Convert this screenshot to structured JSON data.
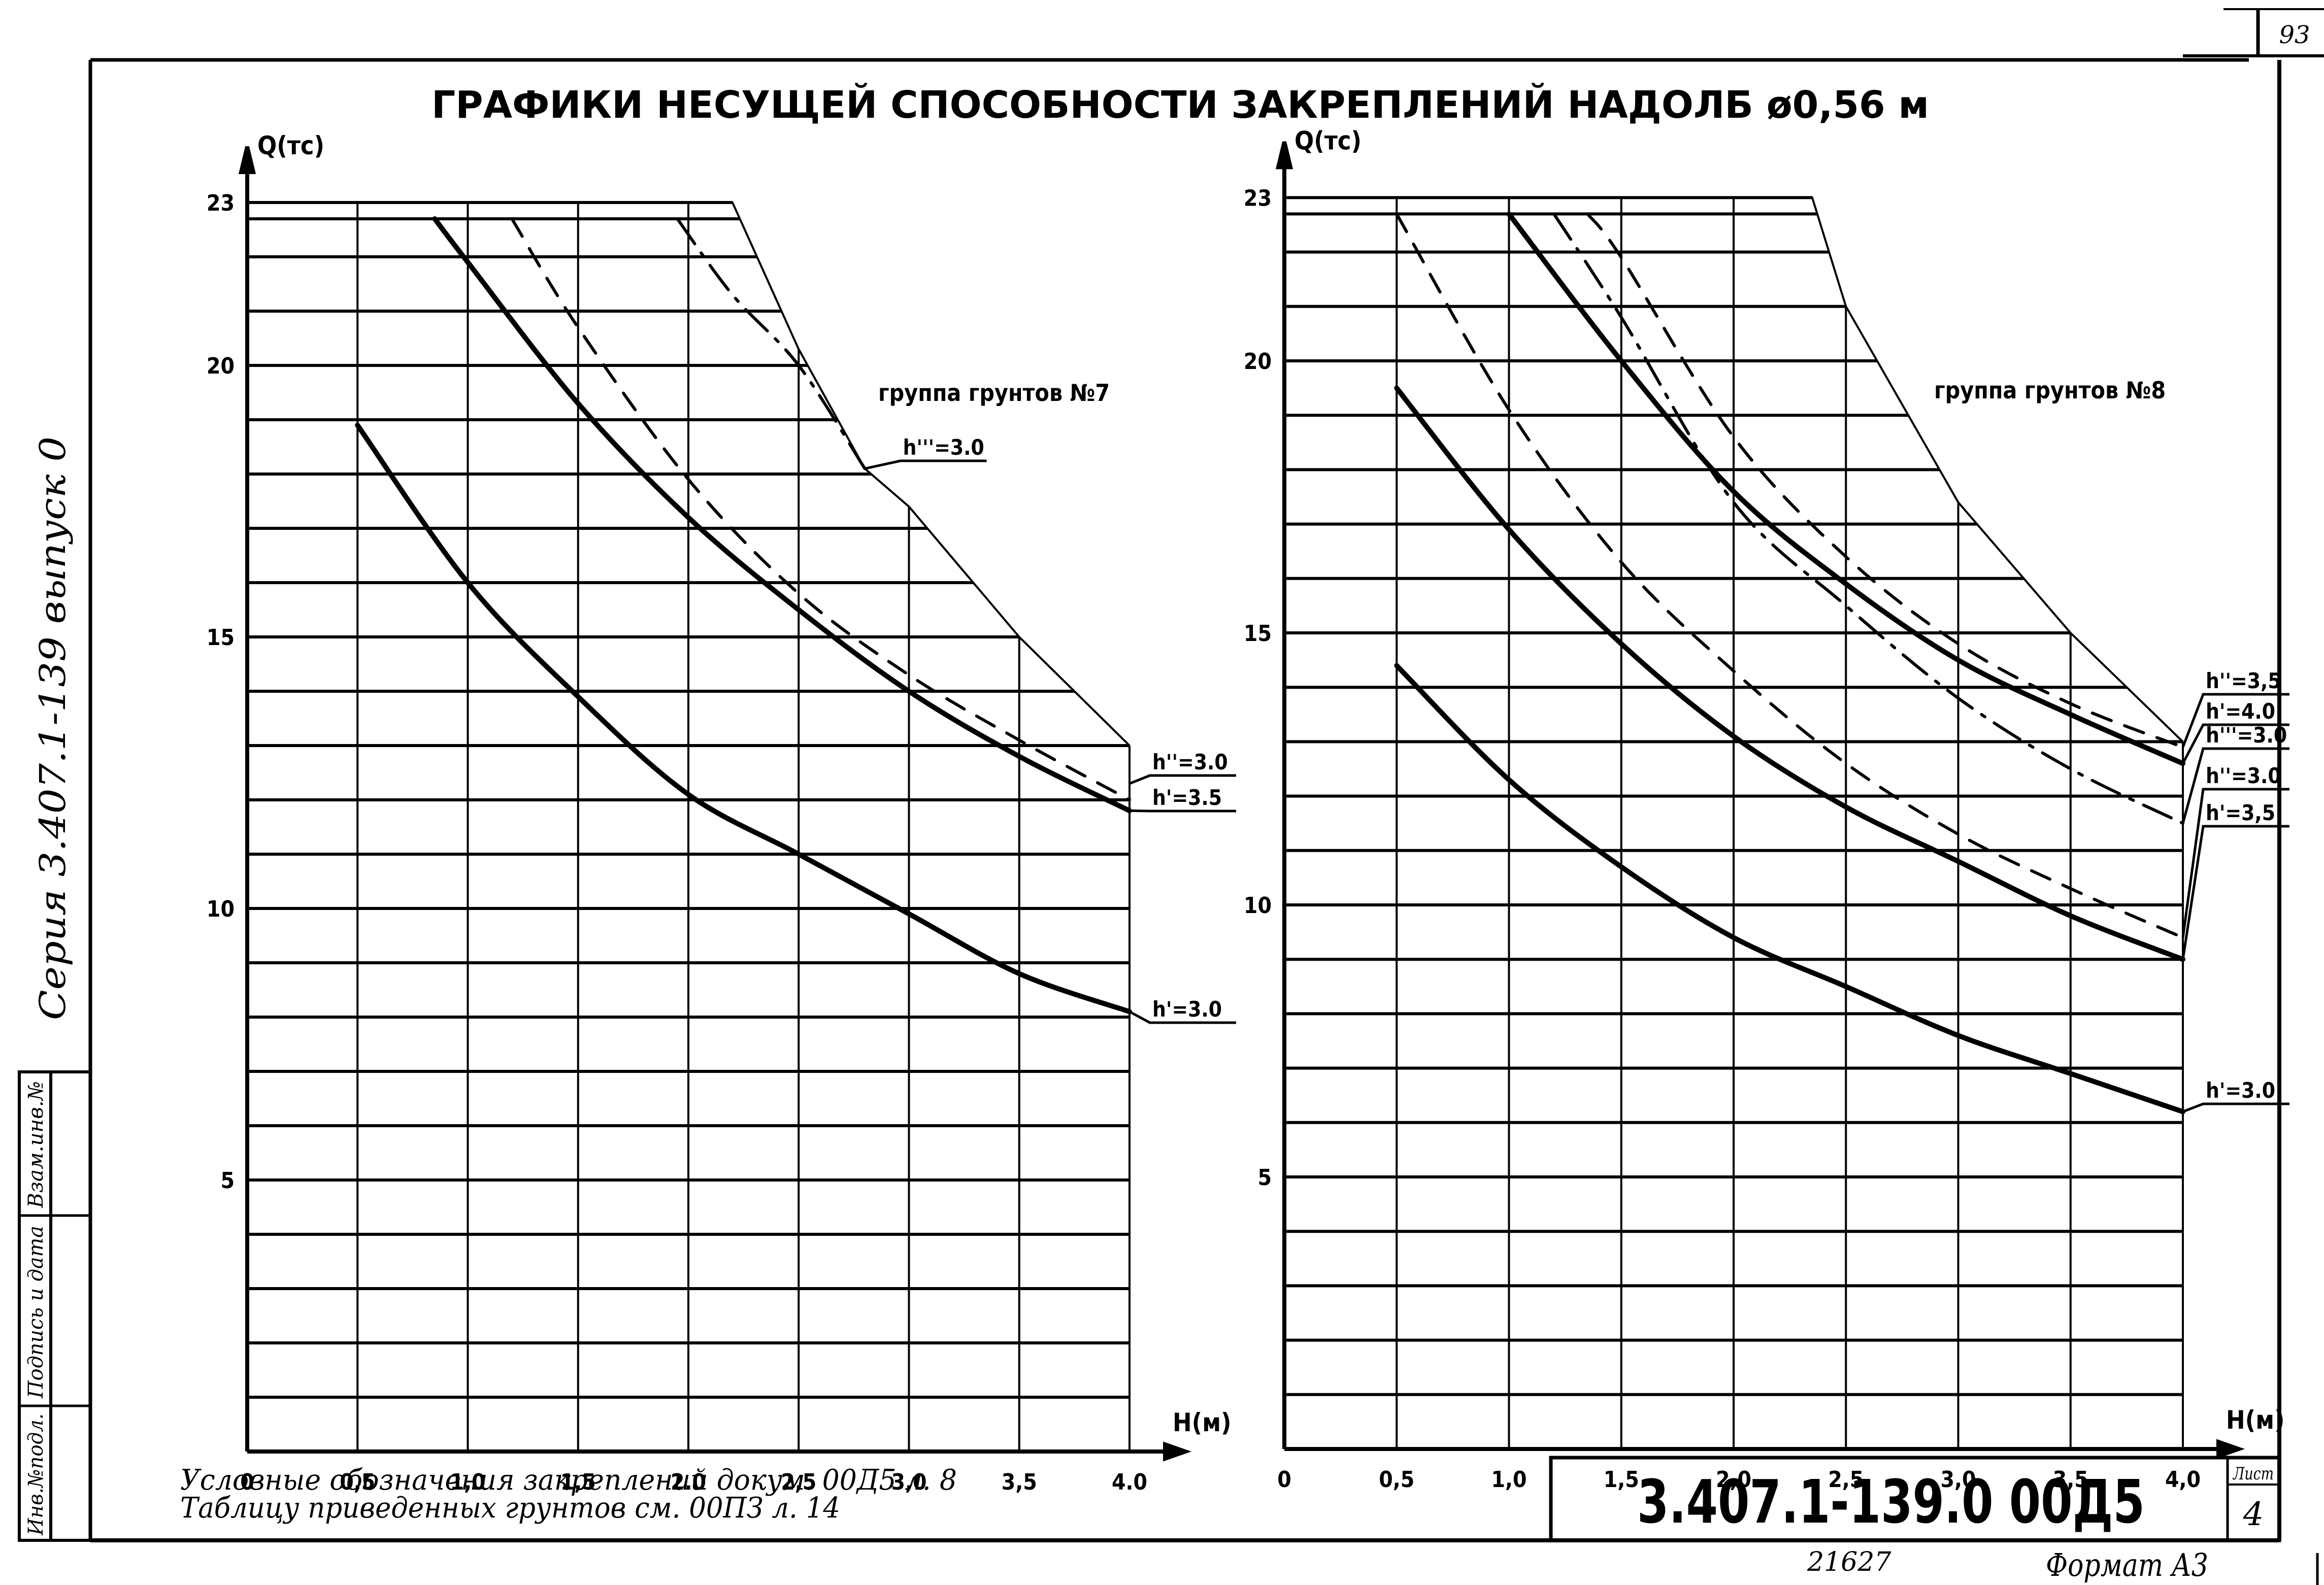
{
  "sheet": {
    "title": "ГРАФИКИ   НЕСУЩЕЙ   СПОСОБНОСТИ   ЗАКРЕПЛЕНИЙ   НАДОЛБ   ø0,56 м",
    "page_number_top": "93",
    "side_series_text": "Серия 3.407.1-139 выпуск 0",
    "stamp_cells": [
      "Инв.№подл.",
      "Подпись и дата",
      "Взам.инв.№"
    ],
    "notes": {
      "line1": "Условные   обозначения   закреплений докум. 00Д5 л. 8",
      "line2": "Таблицу   приведенных   грунтов   см. 00ПЗ л. 14"
    },
    "title_block": {
      "doc_code": "3.407.1-139.0   00Д5",
      "sheet_label": "Лист",
      "sheet_number": "4"
    },
    "inventory_number": "21627",
    "format": "Формат А3"
  },
  "chart_data": [
    {
      "type": "line",
      "title": "группа грунтов №7",
      "xlabel": "H(м)",
      "ylabel": "Q(тс)",
      "x_ticks": [
        "0",
        "0,5",
        "1,0",
        "1,5",
        "2.0",
        "2,5",
        "3,0",
        "3,5",
        "4.0"
      ],
      "y_ticks": [
        "5",
        "10",
        "15",
        "20",
        "23"
      ],
      "xlim": [
        0,
        4.0
      ],
      "ylim": [
        0,
        23
      ],
      "grid": true,
      "envelope": {
        "x": [
          0,
          2.2,
          2.5,
          2.8,
          3.0,
          3.5,
          4.0
        ],
        "y": [
          23,
          23,
          20.3,
          18.1,
          17.4,
          15.0,
          13.0
        ]
      },
      "series": [
        {
          "name": "h'=3.0",
          "style": "solid-bold",
          "x": [
            0.5,
            1.0,
            1.5,
            2.0,
            2.5,
            3.0,
            3.5,
            4.0
          ],
          "y": [
            18.9,
            16.0,
            13.9,
            12.1,
            11.0,
            9.9,
            8.8,
            8.1
          ]
        },
        {
          "name": "h'=3.5",
          "style": "solid-bold",
          "x": [
            0.85,
            1.0,
            1.5,
            2.0,
            2.5,
            3.0,
            3.5,
            4.0
          ],
          "y": [
            22.7,
            21.9,
            19.3,
            17.2,
            15.5,
            14.0,
            12.8,
            11.8
          ]
        },
        {
          "name": "h''=3.0",
          "style": "dashed",
          "x": [
            1.2,
            1.5,
            2.0,
            2.5,
            3.0,
            3.5,
            4.0
          ],
          "y": [
            22.7,
            20.7,
            17.9,
            15.8,
            14.3,
            13.1,
            12.0
          ]
        },
        {
          "name": "h'''=3.0",
          "style": "dash-dot",
          "x": [
            1.95,
            2.2,
            2.5,
            2.8
          ],
          "y": [
            22.7,
            21.3,
            20.0,
            18.1
          ]
        }
      ],
      "annotations": [
        {
          "text": "h'''=3.0",
          "x": 2.8,
          "y": 18.1
        },
        {
          "text": "h''=3.0",
          "x": 4.0,
          "y": 12.3
        },
        {
          "text": "h'=3.5",
          "x": 4.0,
          "y": 11.8
        },
        {
          "text": "h'=3.0",
          "x": 4.0,
          "y": 8.1
        }
      ]
    },
    {
      "type": "line",
      "title": "группа грунтов №8",
      "xlabel": "H(м)",
      "ylabel": "Q(тс)",
      "x_ticks": [
        "0",
        "0,5",
        "1,0",
        "1,5",
        "2,0",
        "2,5",
        "3,0",
        "3,5",
        "4,0"
      ],
      "y_ticks": [
        "5",
        "10",
        "15",
        "20",
        "23"
      ],
      "xlim": [
        0,
        4.0
      ],
      "ylim": [
        0,
        23
      ],
      "grid": true,
      "envelope": {
        "x": [
          0,
          2.35,
          2.5,
          3.0,
          3.5,
          4.0
        ],
        "y": [
          23,
          23,
          21.0,
          17.4,
          15.0,
          13.0
        ]
      },
      "series": [
        {
          "name": "h'=3.0",
          "style": "solid-bold",
          "x": [
            0.5,
            1.0,
            1.5,
            2.0,
            2.5,
            3.0,
            3.5,
            4.0
          ],
          "y": [
            14.4,
            12.3,
            10.7,
            9.4,
            8.5,
            7.6,
            6.9,
            6.2
          ]
        },
        {
          "name": "h'=3.5",
          "style": "solid-bold",
          "x": [
            0.5,
            1.0,
            1.5,
            2.0,
            2.5,
            3.0,
            3.5,
            4.0
          ],
          "y": [
            19.5,
            16.9,
            14.8,
            13.1,
            11.8,
            10.8,
            9.8,
            9.0
          ]
        },
        {
          "name": "h''=3.0",
          "style": "dashed",
          "x": [
            0.5,
            1.0,
            1.5,
            2.0,
            2.5,
            3.0,
            3.5,
            4.0
          ],
          "y": [
            22.7,
            19.1,
            16.3,
            14.3,
            12.6,
            11.3,
            10.3,
            9.4
          ]
        },
        {
          "name": "h'''=3.0",
          "style": "dash-dot",
          "x": [
            1.2,
            1.5,
            2.0,
            2.5,
            3.0,
            3.5,
            4.0
          ],
          "y": [
            22.7,
            20.8,
            17.4,
            15.5,
            13.8,
            12.5,
            11.5
          ]
        },
        {
          "name": "h'=4.0",
          "style": "solid-bold",
          "x": [
            1.0,
            1.5,
            2.0,
            2.5,
            3.0,
            3.5,
            4.0
          ],
          "y": [
            22.7,
            20.0,
            17.6,
            15.9,
            14.5,
            13.5,
            12.6
          ]
        },
        {
          "name": "h''=3.5",
          "style": "dashed",
          "x": [
            1.35,
            1.5,
            2.0,
            2.5,
            3.0,
            3.5,
            4.0
          ],
          "y": [
            22.7,
            21.9,
            18.6,
            16.4,
            14.8,
            13.7,
            12.9
          ]
        }
      ],
      "annotations": [
        {
          "text": "h''=3,5",
          "x": 4.0,
          "y": 12.9
        },
        {
          "text": "h'=4.0",
          "x": 4.0,
          "y": 12.6
        },
        {
          "text": "h'''=3.0",
          "x": 4.0,
          "y": 11.5
        },
        {
          "text": "h''=3.0",
          "x": 4.0,
          "y": 9.4
        },
        {
          "text": "h'=3,5",
          "x": 4.0,
          "y": 9.0
        },
        {
          "text": "h'=3.0",
          "x": 4.0,
          "y": 6.2
        }
      ]
    }
  ]
}
